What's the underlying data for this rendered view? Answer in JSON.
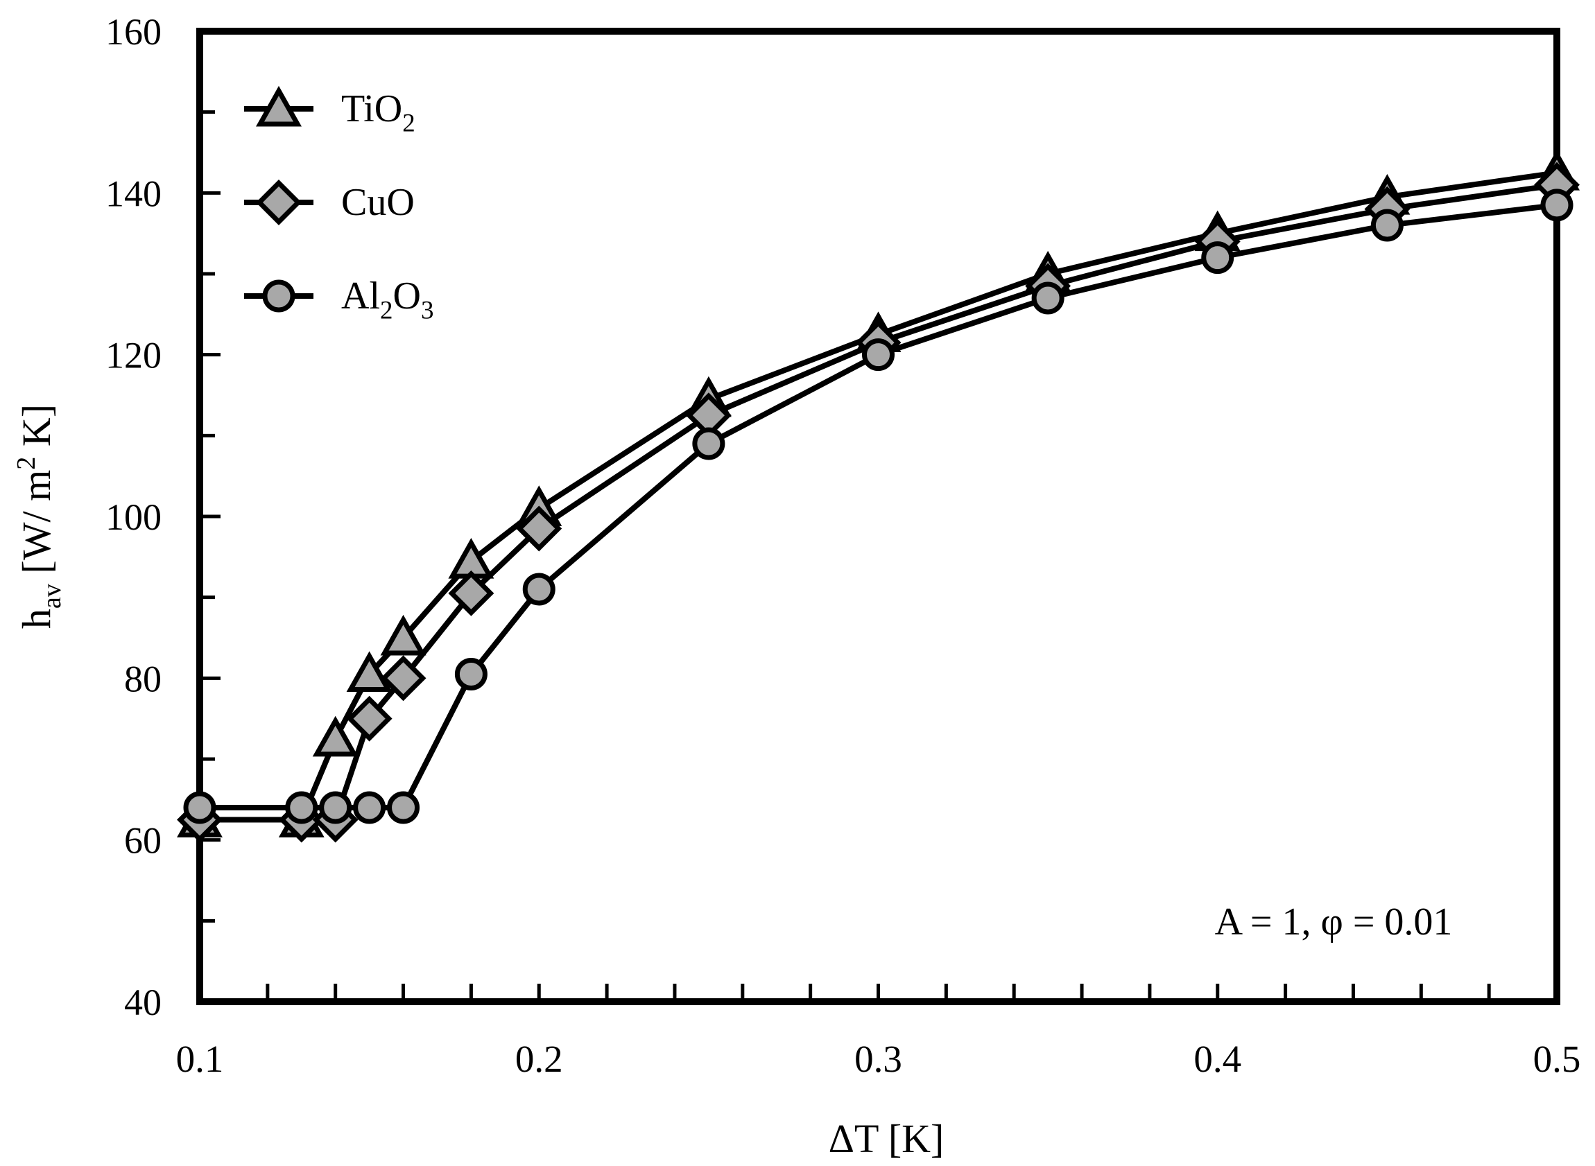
{
  "chart_data": {
    "type": "line",
    "title": "",
    "xlabel": "ΔT [K]",
    "ylabel": "hav [W/ m2 K]",
    "xlabel_parts": [
      {
        "t": "ΔT [K]"
      }
    ],
    "ylabel_parts": [
      {
        "t": "h"
      },
      {
        "t": "av",
        "sub": true
      },
      {
        "t": " [W/ m"
      },
      {
        "t": "2",
        "sup": true
      },
      {
        "t": " K]"
      }
    ],
    "annotation": "A = 1, φ = 0.01",
    "xlim": [
      0.1,
      0.5
    ],
    "ylim": [
      40,
      160
    ],
    "x_major_ticks": [
      0.1,
      0.2,
      0.3,
      0.4,
      0.5
    ],
    "x_major_labels": [
      "0.1",
      "0.2",
      "0.3",
      "0.4",
      "0.5"
    ],
    "x_minor_tick_step": 0.02,
    "y_major_ticks": [
      40,
      60,
      80,
      100,
      120,
      140,
      160
    ],
    "y_major_labels": [
      "40",
      "60",
      "80",
      "100",
      "120",
      "140",
      "160"
    ],
    "y_minor_tick_step": 10,
    "grid": false,
    "legend_position": "top-left-inside",
    "series": [
      {
        "name": "TiO2",
        "label_parts": [
          {
            "t": "TiO"
          },
          {
            "t": "2",
            "sub": true
          }
        ],
        "marker": "triangle",
        "x": [
          0.1,
          0.13,
          0.14,
          0.15,
          0.16,
          0.18,
          0.2,
          0.25,
          0.3,
          0.35,
          0.4,
          0.45,
          0.5
        ],
        "values": [
          62.5,
          62.5,
          72.5,
          80.5,
          85.0,
          94.5,
          101.0,
          114.5,
          122.5,
          130.0,
          135.0,
          139.5,
          142.5
        ]
      },
      {
        "name": "CuO",
        "label_parts": [
          {
            "t": "CuO"
          }
        ],
        "marker": "diamond",
        "x": [
          0.1,
          0.13,
          0.14,
          0.15,
          0.16,
          0.18,
          0.2,
          0.25,
          0.3,
          0.35,
          0.4,
          0.45,
          0.5
        ],
        "values": [
          62.5,
          62.5,
          62.5,
          75.0,
          80.0,
          90.5,
          98.5,
          112.5,
          121.5,
          128.5,
          134.0,
          138.0,
          141.0
        ]
      },
      {
        "name": "Al2O3",
        "label_parts": [
          {
            "t": "Al"
          },
          {
            "t": "2",
            "sub": true
          },
          {
            "t": "O"
          },
          {
            "t": "3",
            "sub": true
          }
        ],
        "marker": "circle",
        "x": [
          0.1,
          0.13,
          0.14,
          0.15,
          0.16,
          0.18,
          0.2,
          0.25,
          0.3,
          0.35,
          0.4,
          0.45,
          0.5
        ],
        "values": [
          64.0,
          64.0,
          64.0,
          64.0,
          64.0,
          80.5,
          91.0,
          109.0,
          120.0,
          127.0,
          132.0,
          136.0,
          138.5
        ]
      }
    ],
    "colors": {
      "line": "#000000",
      "marker_fill": "#a8a8a8",
      "marker_stroke": "#000000",
      "text": "#000000",
      "background": "#ffffff"
    }
  }
}
